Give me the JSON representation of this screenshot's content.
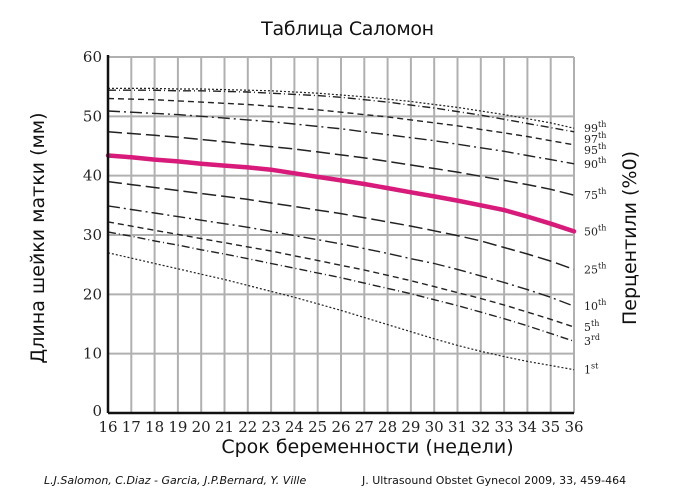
{
  "header": {
    "title": "Таблица Саломон"
  },
  "axes": {
    "xlabel": "Срок беременности (недели)",
    "ylabel": "Длина шейки матки (мм)",
    "right_label": "Перцентили (%0)"
  },
  "citation": {
    "authors": "L.J.Salomon, C.Diaz  - Garcia, J.P.Bernard, Y. Ville",
    "journal": "J. Ultrasound Obstet Gynecol 2009, 33, 459-464"
  },
  "colors": {
    "highlight": "#d81b7a",
    "lines": "#222222",
    "grid": "#b0b0b0"
  },
  "chart_data": {
    "type": "line",
    "title": "Таблица Саломон",
    "xlabel": "Срок беременности (недели)",
    "ylabel": "Длина шейки матки (мм)",
    "y2label": "Перцентили (%0)",
    "xlim": [
      16,
      36
    ],
    "ylim": [
      0,
      60
    ],
    "grid": true,
    "x": [
      16,
      17,
      18,
      19,
      20,
      21,
      22,
      23,
      24,
      25,
      26,
      27,
      28,
      29,
      30,
      31,
      32,
      33,
      34,
      35,
      36
    ],
    "yticks": [
      0,
      10,
      20,
      30,
      40,
      50,
      60
    ],
    "legend_position": "right",
    "series": [
      {
        "name": "99th",
        "label": "99",
        "sup": "th",
        "dash": "2,2",
        "width": 1.2,
        "highlight": false,
        "values": [
          54.7,
          54.7,
          54.7,
          54.6,
          54.6,
          54.5,
          54.4,
          54.3,
          54.1,
          53.9,
          53.6,
          53.3,
          52.9,
          52.5,
          52.0,
          51.5,
          50.9,
          50.3,
          49.6,
          48.9,
          48.0
        ]
      },
      {
        "name": "97th",
        "label": "97",
        "sup": "th",
        "dash": "8,3,1,3",
        "width": 1.4,
        "highlight": false,
        "values": [
          54.4,
          54.4,
          54.4,
          54.3,
          54.3,
          54.2,
          54.1,
          53.9,
          53.7,
          53.5,
          53.2,
          52.8,
          52.4,
          51.9,
          51.4,
          50.8,
          50.2,
          49.5,
          48.8,
          48.1,
          47.4
        ]
      },
      {
        "name": "95th",
        "label": "95",
        "sup": "th",
        "dash": "6,4",
        "width": 1.4,
        "highlight": false,
        "values": [
          53.0,
          52.9,
          52.8,
          52.6,
          52.4,
          52.2,
          52.0,
          51.7,
          51.4,
          51.1,
          50.7,
          50.3,
          49.9,
          49.4,
          48.9,
          48.4,
          47.8,
          47.2,
          46.6,
          45.9,
          45.2
        ]
      },
      {
        "name": "90th",
        "label": "90",
        "sup": "th",
        "dash": "12,4,2,4",
        "width": 1.4,
        "highlight": false,
        "values": [
          50.9,
          50.7,
          50.5,
          50.3,
          50.0,
          49.7,
          49.4,
          49.1,
          48.7,
          48.3,
          47.9,
          47.4,
          46.9,
          46.4,
          45.9,
          45.3,
          44.7,
          44.1,
          43.4,
          42.7,
          42.0
        ]
      },
      {
        "name": "75th",
        "label": "75",
        "sup": "th",
        "dash": "14,5",
        "width": 1.5,
        "highlight": false,
        "values": [
          47.4,
          47.1,
          46.8,
          46.5,
          46.1,
          45.7,
          45.3,
          44.9,
          44.5,
          44.0,
          43.5,
          43.0,
          42.4,
          41.8,
          41.2,
          40.6,
          39.9,
          39.2,
          38.5,
          37.7,
          36.7
        ]
      },
      {
        "name": "50th",
        "label": "50",
        "sup": "th",
        "dash": "",
        "width": 4.5,
        "highlight": true,
        "values": [
          43.4,
          43.1,
          42.7,
          42.4,
          42.0,
          41.7,
          41.4,
          41.0,
          40.4,
          39.8,
          39.2,
          38.6,
          37.9,
          37.2,
          36.5,
          35.8,
          35.0,
          34.2,
          33.1,
          31.9,
          30.6
        ]
      },
      {
        "name": "25th",
        "label": "25",
        "sup": "th",
        "dash": "14,5",
        "width": 1.5,
        "highlight": false,
        "values": [
          39.0,
          38.5,
          38.0,
          37.5,
          37.0,
          36.5,
          36.0,
          35.4,
          34.8,
          34.2,
          33.6,
          32.9,
          32.2,
          31.5,
          30.7,
          29.9,
          29.0,
          27.9,
          26.8,
          25.6,
          24.2
        ]
      },
      {
        "name": "10th",
        "label": "10",
        "sup": "th",
        "dash": "12,4,2,4",
        "width": 1.4,
        "highlight": false,
        "values": [
          34.9,
          34.3,
          33.7,
          33.1,
          32.5,
          31.9,
          31.3,
          30.6,
          29.9,
          29.2,
          28.5,
          27.7,
          26.9,
          26.0,
          25.2,
          24.2,
          23.1,
          22.0,
          20.8,
          19.5,
          18.0
        ]
      },
      {
        "name": "5th",
        "label": "5",
        "sup": "th",
        "dash": "6,4",
        "width": 1.4,
        "highlight": false,
        "values": [
          32.2,
          31.5,
          30.8,
          30.1,
          29.4,
          28.7,
          28.0,
          27.3,
          26.5,
          25.7,
          24.9,
          24.1,
          23.2,
          22.3,
          21.3,
          20.3,
          19.3,
          18.2,
          17.0,
          15.8,
          14.5
        ]
      },
      {
        "name": "3rd",
        "label": "3",
        "sup": "rd",
        "dash": "8,3,1,3",
        "width": 1.4,
        "highlight": false,
        "values": [
          30.5,
          29.8,
          29.0,
          28.3,
          27.5,
          26.8,
          26.0,
          25.2,
          24.4,
          23.6,
          22.8,
          21.9,
          21.0,
          20.1,
          19.1,
          18.1,
          17.0,
          15.9,
          14.7,
          13.4,
          12.1
        ]
      },
      {
        "name": "1st",
        "label": "1",
        "sup": "st",
        "dash": "2,2",
        "width": 1.2,
        "highlight": false,
        "values": [
          27.0,
          26.1,
          25.2,
          24.3,
          23.4,
          22.5,
          21.5,
          20.5,
          19.5,
          18.4,
          17.3,
          16.1,
          14.9,
          13.7,
          12.5,
          11.4,
          10.4,
          9.5,
          8.7,
          8.0,
          7.3
        ]
      }
    ]
  }
}
